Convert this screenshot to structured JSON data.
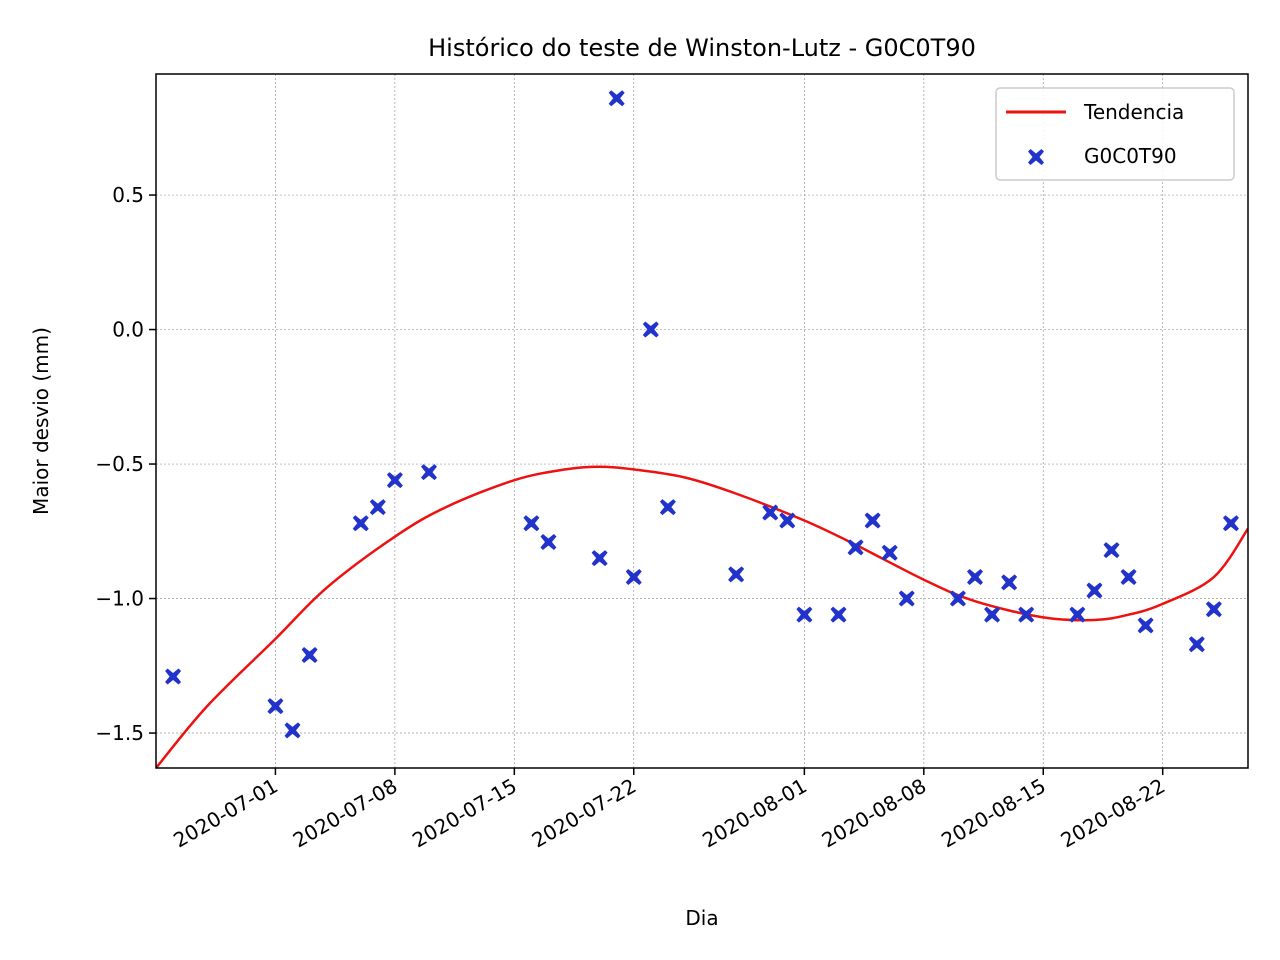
{
  "chart_data": {
    "type": "scatter",
    "title": "Histórico do teste de Winston-Lutz - G0C0T90",
    "xlabel": "Dia",
    "ylabel": "Maior desvio (mm)",
    "x_range": [
      "2020-06-24",
      "2020-08-27"
    ],
    "ylim": [
      -1.63,
      0.95
    ],
    "grid": true,
    "legend_position": "top-right",
    "x_ticks": [
      "2020-07-01",
      "2020-07-08",
      "2020-07-15",
      "2020-07-22",
      "2020-08-01",
      "2020-08-08",
      "2020-08-15",
      "2020-08-22"
    ],
    "y_ticks": [
      0.5,
      0.0,
      -0.5,
      -1.0,
      -1.5
    ],
    "y_tick_labels": [
      "0.5",
      "0.0",
      "−0.5",
      "−1.0",
      "−1.5"
    ],
    "colors": {
      "trend": "#ee1111",
      "points": "#2233cc",
      "grid": "#999999"
    },
    "series": [
      {
        "name": "G0C0T90",
        "kind": "scatter",
        "marker": "x-filled",
        "points": [
          {
            "x": "2020-06-25",
            "y": -1.29
          },
          {
            "x": "2020-07-01",
            "y": -1.4
          },
          {
            "x": "2020-07-02",
            "y": -1.49
          },
          {
            "x": "2020-07-03",
            "y": -1.21
          },
          {
            "x": "2020-07-06",
            "y": -0.72
          },
          {
            "x": "2020-07-07",
            "y": -0.66
          },
          {
            "x": "2020-07-08",
            "y": -0.56
          },
          {
            "x": "2020-07-10",
            "y": -0.53
          },
          {
            "x": "2020-07-16",
            "y": -0.72
          },
          {
            "x": "2020-07-17",
            "y": -0.79
          },
          {
            "x": "2020-07-20",
            "y": -0.85
          },
          {
            "x": "2020-07-21",
            "y": 0.86
          },
          {
            "x": "2020-07-22",
            "y": -0.92
          },
          {
            "x": "2020-07-23",
            "y": 0.0
          },
          {
            "x": "2020-07-24",
            "y": -0.66
          },
          {
            "x": "2020-07-28",
            "y": -0.91
          },
          {
            "x": "2020-07-30",
            "y": -0.68
          },
          {
            "x": "2020-07-31",
            "y": -0.71
          },
          {
            "x": "2020-08-01",
            "y": -1.06
          },
          {
            "x": "2020-08-03",
            "y": -1.06
          },
          {
            "x": "2020-08-04",
            "y": -0.81
          },
          {
            "x": "2020-08-05",
            "y": -0.71
          },
          {
            "x": "2020-08-06",
            "y": -0.83
          },
          {
            "x": "2020-08-07",
            "y": -1.0
          },
          {
            "x": "2020-08-10",
            "y": -1.0
          },
          {
            "x": "2020-08-11",
            "y": -0.92
          },
          {
            "x": "2020-08-12",
            "y": -1.06
          },
          {
            "x": "2020-08-13",
            "y": -0.94
          },
          {
            "x": "2020-08-14",
            "y": -1.06
          },
          {
            "x": "2020-08-17",
            "y": -1.06
          },
          {
            "x": "2020-08-18",
            "y": -0.97
          },
          {
            "x": "2020-08-19",
            "y": -0.82
          },
          {
            "x": "2020-08-20",
            "y": -0.92
          },
          {
            "x": "2020-08-21",
            "y": -1.1
          },
          {
            "x": "2020-08-24",
            "y": -1.17
          },
          {
            "x": "2020-08-25",
            "y": -1.04
          },
          {
            "x": "2020-08-26",
            "y": -0.72
          }
        ]
      },
      {
        "name": "Tendencia",
        "kind": "line",
        "points": [
          {
            "x": "2020-06-24",
            "y": -1.63
          },
          {
            "x": "2020-06-27",
            "y": -1.4
          },
          {
            "x": "2020-07-01",
            "y": -1.15
          },
          {
            "x": "2020-07-04",
            "y": -0.96
          },
          {
            "x": "2020-07-08",
            "y": -0.77
          },
          {
            "x": "2020-07-11",
            "y": -0.66
          },
          {
            "x": "2020-07-15",
            "y": -0.56
          },
          {
            "x": "2020-07-18",
            "y": -0.52
          },
          {
            "x": "2020-07-20",
            "y": -0.51
          },
          {
            "x": "2020-07-22",
            "y": -0.52
          },
          {
            "x": "2020-07-25",
            "y": -0.55
          },
          {
            "x": "2020-07-28",
            "y": -0.61
          },
          {
            "x": "2020-08-01",
            "y": -0.71
          },
          {
            "x": "2020-08-04",
            "y": -0.8
          },
          {
            "x": "2020-08-08",
            "y": -0.93
          },
          {
            "x": "2020-08-11",
            "y": -1.01
          },
          {
            "x": "2020-08-15",
            "y": -1.07
          },
          {
            "x": "2020-08-18",
            "y": -1.08
          },
          {
            "x": "2020-08-20",
            "y": -1.06
          },
          {
            "x": "2020-08-22",
            "y": -1.02
          },
          {
            "x": "2020-08-25",
            "y": -0.92
          },
          {
            "x": "2020-08-27",
            "y": -0.74
          }
        ]
      }
    ]
  }
}
